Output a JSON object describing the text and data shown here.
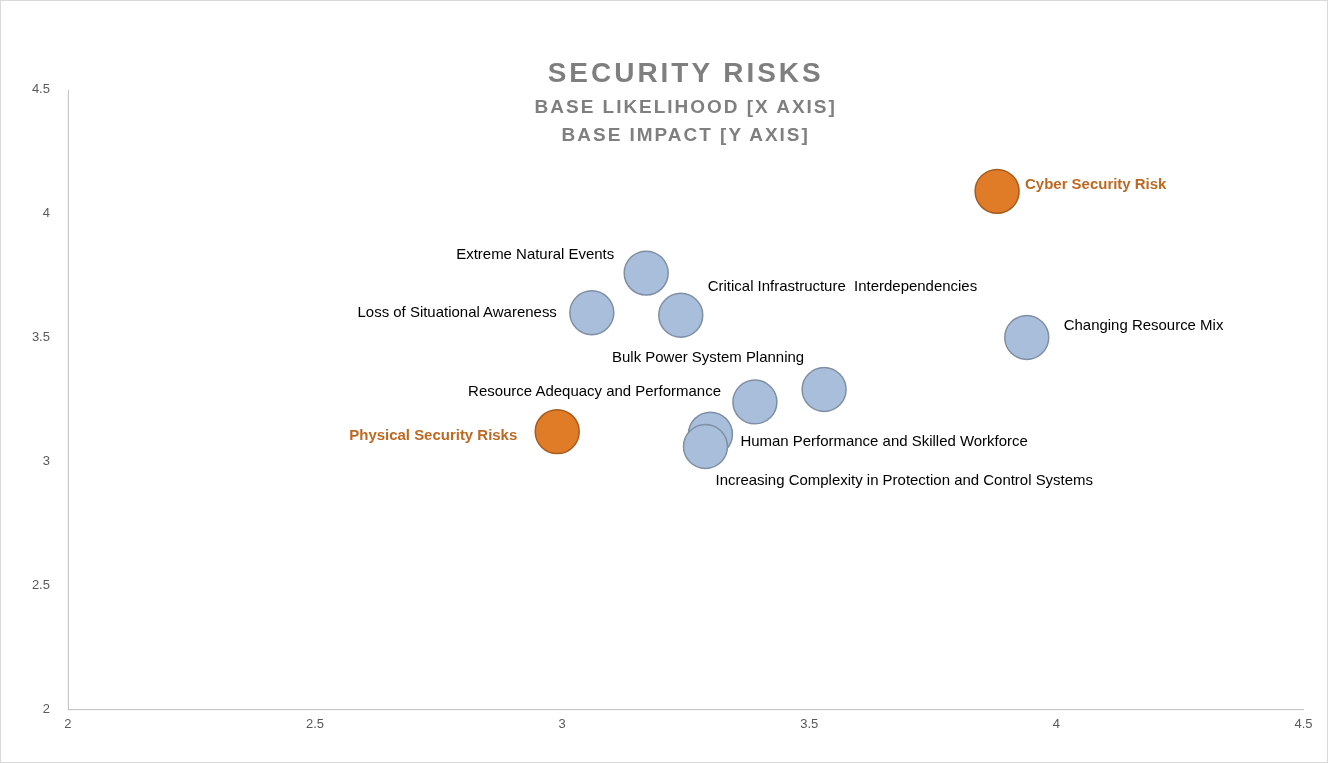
{
  "chart_data": {
    "type": "scatter",
    "title": "SECURITY RISKS",
    "subtitle": "BASE LIKELIHOOD [X AXIS]\nBASE IMPACT [Y AXIS]",
    "xlim": [
      2,
      4.5
    ],
    "xticks": [
      2,
      2.5,
      3,
      3.5,
      4,
      4.5
    ],
    "ylim": [
      2,
      4.5
    ],
    "yticks": [
      2,
      2.5,
      3,
      3.5,
      4,
      4.5
    ],
    "grid": false,
    "legend": false,
    "marker": "circle",
    "series": [
      {
        "name": "Cyber Security Risk",
        "color": "#e07b28",
        "x": [
          3.88
        ],
        "values": [
          4.09
        ]
      },
      {
        "name": "Extreme Natural Events",
        "color": "#a9bedb",
        "x": [
          3.17
        ],
        "values": [
          3.76
        ]
      },
      {
        "name": "Loss of Situational Awareness",
        "color": "#a9bedb",
        "x": [
          3.06
        ],
        "values": [
          3.6
        ]
      },
      {
        "name": "Critical Infrastructure  Interdependencies",
        "color": "#a9bedb",
        "x": [
          3.24
        ],
        "values": [
          3.59
        ]
      },
      {
        "name": "Changing Resource Mix",
        "color": "#a9bedb",
        "x": [
          3.94
        ],
        "values": [
          3.5
        ]
      },
      {
        "name": "Bulk Power System Planning",
        "color": "#a9bedb",
        "x": [
          3.53
        ],
        "values": [
          3.29
        ]
      },
      {
        "name": "Resource Adequacy and Performance",
        "color": "#a9bedb",
        "x": [
          3.39
        ],
        "values": [
          3.24
        ]
      },
      {
        "name": "Physical Security Risks",
        "color": "#e07b28",
        "x": [
          2.99
        ],
        "values": [
          3.12
        ]
      },
      {
        "name": "Human Performance and Skilled Workforce",
        "color": "#a9bedb",
        "x": [
          3.3
        ],
        "values": [
          3.11
        ]
      },
      {
        "name": "Increasing Complexity in Protection and Control Systems",
        "color": "#a9bedb",
        "x": [
          3.29
        ],
        "values": [
          3.06
        ]
      }
    ]
  }
}
